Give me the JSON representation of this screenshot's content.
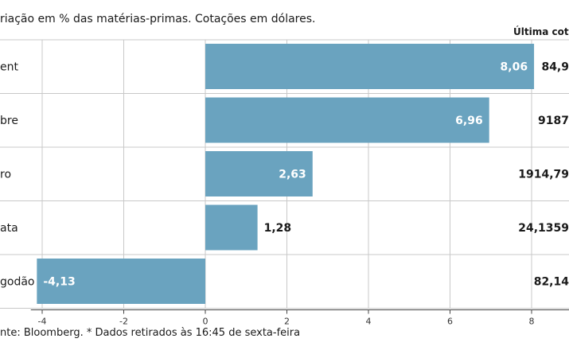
{
  "header": {
    "subtitle": "riação em % das matérias-primas. Cotações em dólares.",
    "price_column_title": "Última cotaç"
  },
  "footer": {
    "source": "nte: Bloomberg.  * Dados retirados às 16:45 de sexta-feira"
  },
  "colors": {
    "bar": "#6aa3bf",
    "grid": "#c8c8c8"
  },
  "chart_data": {
    "type": "bar",
    "orientation": "horizontal",
    "categories": [
      "ent",
      "bre",
      "ro",
      "ata",
      "godão"
    ],
    "values": [
      8.06,
      6.96,
      2.63,
      1.28,
      -4.13
    ],
    "value_labels": [
      "8,06",
      "6,96",
      "2,63",
      "1,28",
      "-4,13"
    ],
    "prices": [
      "84,9",
      "9187",
      "1914,79",
      "24,1359",
      "82,14"
    ],
    "xlim": [
      -4.2,
      8.3
    ],
    "xticks": [
      -4,
      -2,
      0,
      2,
      4,
      6,
      8
    ],
    "grid": true
  }
}
